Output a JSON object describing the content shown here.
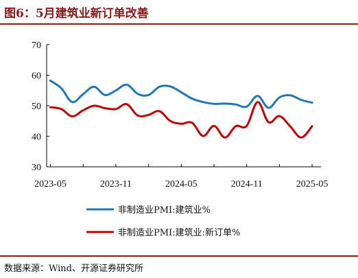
{
  "title": "图6：5月建筑业新订单改善",
  "source": "数据来源：Wind、开源证券研究所",
  "colors": {
    "title": "#8c1a1a",
    "pmi_series": "#1f77b4",
    "new_orders_series": "#c00000",
    "axis": "#000000"
  },
  "chart_data": {
    "type": "line",
    "x": [
      "2023-05",
      "2023-06",
      "2023-07",
      "2023-08",
      "2023-09",
      "2023-10",
      "2023-11",
      "2023-12",
      "2024-01",
      "2024-02",
      "2024-03",
      "2024-04",
      "2024-05",
      "2024-06",
      "2024-07",
      "2024-08",
      "2024-09",
      "2024-10",
      "2024-11",
      "2024-12",
      "2025-01",
      "2025-02",
      "2025-03",
      "2025-04",
      "2025-05"
    ],
    "x_tick_labels": [
      "2023-05",
      "2023-11",
      "2024-05",
      "2024-11",
      "2025-05"
    ],
    "y_ticks": [
      30,
      40,
      50,
      60,
      70
    ],
    "ylim": [
      30,
      70
    ],
    "title": "",
    "xlabel": "",
    "ylabel": "",
    "grid": false,
    "legend_position": "bottom",
    "series": [
      {
        "name": "非制造业PMI:建筑业%",
        "color": "#1f77b4",
        "values": [
          58.2,
          55.7,
          51.2,
          53.8,
          56.2,
          53.5,
          55.0,
          56.9,
          53.9,
          53.5,
          56.2,
          56.3,
          54.4,
          52.3,
          51.2,
          50.6,
          50.7,
          50.4,
          49.7,
          53.2,
          49.3,
          52.7,
          53.4,
          51.9,
          51.0
        ]
      },
      {
        "name": "非制造业PMI:建筑业:新订单%",
        "color": "#c00000",
        "values": [
          49.5,
          48.9,
          46.5,
          48.5,
          50.0,
          49.2,
          48.9,
          50.5,
          46.8,
          47.0,
          48.2,
          45.0,
          44.1,
          44.4,
          40.1,
          43.4,
          39.6,
          43.3,
          43.4,
          51.2,
          44.6,
          46.6,
          43.2,
          39.6,
          43.3
        ]
      }
    ]
  }
}
